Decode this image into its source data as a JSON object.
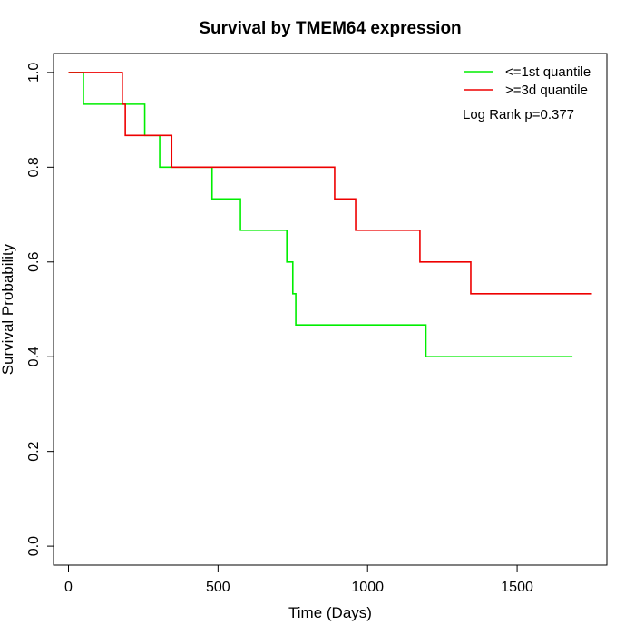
{
  "chart_data": {
    "type": "line",
    "title": "Survival by TMEM64 expression",
    "xlabel": "Time (Days)",
    "ylabel": "Survival Probability",
    "xlim": [
      -50,
      1800
    ],
    "ylim": [
      -0.04,
      1.04
    ],
    "xticks": [
      0,
      500,
      1000,
      1500
    ],
    "yticks": [
      0.0,
      0.2,
      0.4,
      0.6,
      0.8,
      1.0
    ],
    "xtick_labels": [
      "0",
      "500",
      "1000",
      "1500"
    ],
    "ytick_labels": [
      "0.0",
      "0.2",
      "0.4",
      "0.6",
      "0.8",
      "1.0"
    ],
    "grid": false,
    "legend_position": "top-right",
    "annotation": "Log Rank p=0.377",
    "series": [
      {
        "name": "<=1st quantile",
        "color": "#00ee00",
        "step_points": [
          [
            0,
            1.0
          ],
          [
            50,
            0.933
          ],
          [
            255,
            0.867
          ],
          [
            305,
            0.8
          ],
          [
            480,
            0.733
          ],
          [
            575,
            0.667
          ],
          [
            730,
            0.6
          ],
          [
            750,
            0.533
          ],
          [
            760,
            0.467
          ],
          [
            1195,
            0.4
          ],
          [
            1685,
            0.4
          ]
        ]
      },
      {
        "name": ">=3d quantile",
        "color": "#ee0000",
        "step_points": [
          [
            0,
            1.0
          ],
          [
            180,
            0.933
          ],
          [
            190,
            0.867
          ],
          [
            345,
            0.8
          ],
          [
            890,
            0.733
          ],
          [
            960,
            0.667
          ],
          [
            1175,
            0.6
          ],
          [
            1345,
            0.533
          ],
          [
            1750,
            0.533
          ]
        ]
      }
    ]
  }
}
